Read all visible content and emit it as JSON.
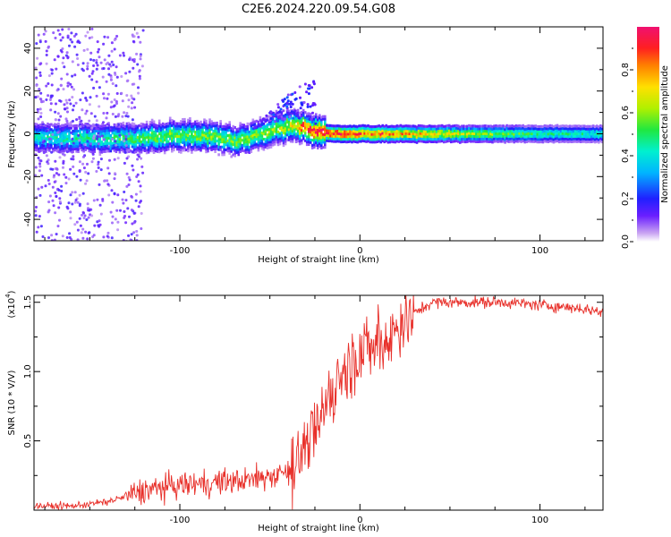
{
  "chart_data": [
    {
      "type": "heatmap",
      "title": "C2E6.2024.220.09.54.G08",
      "xlabel": "Height of straight line (km)",
      "ylabel": "Frequency (Hz)",
      "xlim": [
        -181,
        135
      ],
      "ylim": [
        -50,
        50
      ],
      "xticks": [
        -100,
        0,
        100
      ],
      "yticks": [
        -40,
        -20,
        0,
        20,
        40
      ],
      "colorbar": {
        "label": "Normalized spectral amplitude",
        "range": [
          0.0,
          1.0
        ],
        "ticks": [
          "0.0",
          "0.2",
          "0.4",
          "0.6",
          "0.8"
        ]
      },
      "ridge": {
        "description": "spectral ridge of frequency vs height",
        "x": [
          -181,
          -150,
          -120,
          -100,
          -85,
          -70,
          -55,
          -40,
          -32,
          -25,
          -15,
          0,
          20,
          50,
          100,
          135
        ],
        "center_hz": [
          -2,
          -2,
          -2,
          -1,
          -1,
          -3,
          0,
          4,
          3,
          1,
          0,
          0,
          0,
          0,
          0,
          0
        ],
        "peak_amplitude": [
          0.45,
          0.5,
          0.55,
          0.6,
          0.6,
          0.6,
          0.62,
          0.7,
          0.9,
          1.0,
          1.0,
          0.95,
          0.85,
          0.7,
          0.5,
          0.45
        ]
      }
    },
    {
      "type": "line",
      "xlabel": "Height of straight line (km)",
      "ylabel": "SNR (10 * V/V)",
      "y_scale_label": "(x10",
      "y_scale_exp": "4",
      "xlim": [
        -181,
        135
      ],
      "ylim": [
        0,
        1.55
      ],
      "xticks": [
        -100,
        0,
        100
      ],
      "yticks": [
        "0.5",
        "1.0",
        "1.5"
      ],
      "series": [
        {
          "name": "SNR",
          "color": "#e8302a",
          "x": [
            -181,
            -160,
            -140,
            -120,
            -100,
            -80,
            -60,
            -45,
            -35,
            -25,
            -18,
            -10,
            0,
            10,
            20,
            30,
            40,
            60,
            80,
            100,
            120,
            135
          ],
          "y": [
            0.03,
            0.03,
            0.06,
            0.14,
            0.18,
            0.2,
            0.22,
            0.26,
            0.35,
            0.55,
            0.8,
            1.0,
            1.1,
            1.2,
            1.3,
            1.42,
            1.5,
            1.5,
            1.5,
            1.48,
            1.46,
            1.43
          ]
        }
      ]
    }
  ]
}
